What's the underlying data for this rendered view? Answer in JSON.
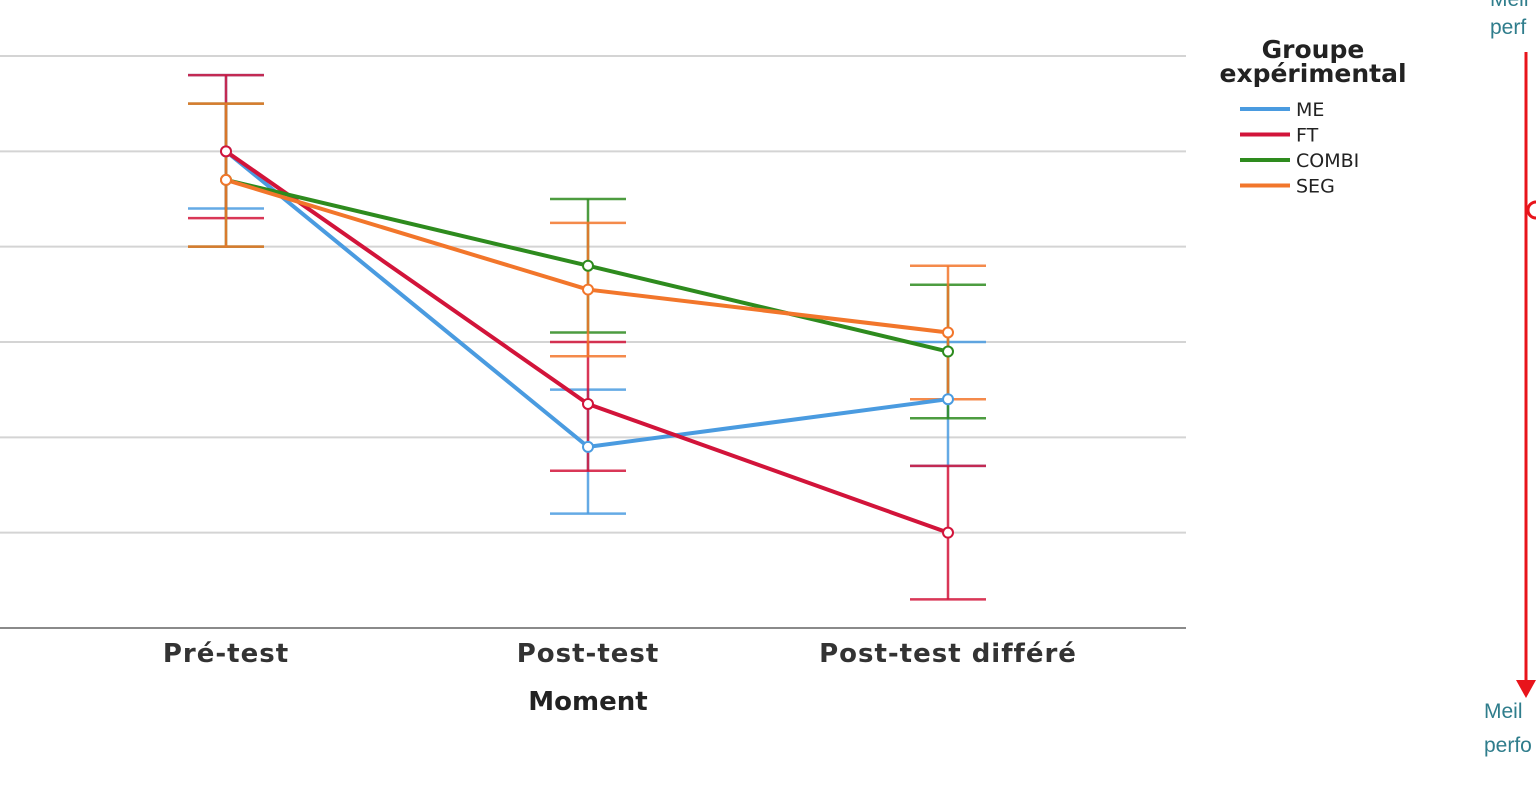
{
  "chart_data": {
    "type": "line",
    "title": "",
    "xlabel": "Moment",
    "ylabel": "",
    "categories": [
      "Pré-test",
      "Post-test",
      "Post-test différé"
    ],
    "ylim": [
      0,
      6
    ],
    "grid": true,
    "error_bars": true,
    "legend": {
      "title_line1": "Groupe",
      "title_line2": "expérimental",
      "position": "top-right"
    },
    "series": [
      {
        "name": "ME",
        "color": "#4a9be0",
        "values": [
          5.0,
          1.9,
          2.4
        ],
        "upper": [
          5.8,
          2.5,
          3.0
        ],
        "lower": [
          4.4,
          1.2,
          1.7
        ]
      },
      {
        "name": "FT",
        "color": "#d2143a",
        "values": [
          5.0,
          2.35,
          1.0
        ],
        "upper": [
          5.8,
          3.0,
          1.7
        ],
        "lower": [
          4.3,
          1.65,
          0.3
        ]
      },
      {
        "name": "COMBI",
        "color": "#2e8b1e",
        "values": [
          4.7,
          3.8,
          2.9
        ],
        "upper": [
          5.5,
          4.5,
          3.6
        ],
        "lower": [
          4.0,
          3.1,
          2.2
        ]
      },
      {
        "name": "SEG",
        "color": "#f2762b",
        "values": [
          4.7,
          3.55,
          3.1
        ],
        "upper": [
          5.5,
          4.25,
          3.8
        ],
        "lower": [
          4.0,
          2.85,
          2.4
        ]
      }
    ]
  },
  "side_annotation": {
    "top_line1": "Meil",
    "top_line2": "perf",
    "bottom_line1": "Meil",
    "bottom_line2": "perfo",
    "arrow_color": "#e8141b"
  }
}
